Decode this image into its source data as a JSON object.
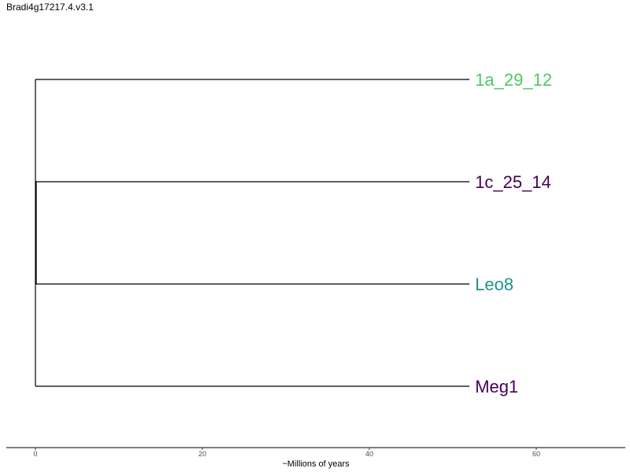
{
  "title": "Bradi4g17217.4.v3.1",
  "chart_data": {
    "type": "dendrogram",
    "xlabel": "~Millions of years",
    "x_ticks": [
      0,
      20,
      40,
      60
    ],
    "xlim": [
      0,
      70
    ],
    "tips": [
      {
        "name": "1a_29_12",
        "color": "#4ec965"
      },
      {
        "name": "1c_25_14",
        "color": "#440154"
      },
      {
        "name": "Leo8",
        "color": "#21918c"
      },
      {
        "name": "Meg1",
        "color": "#440154"
      }
    ],
    "branch_length": 52,
    "branch_color": "#000000",
    "grid": false
  }
}
